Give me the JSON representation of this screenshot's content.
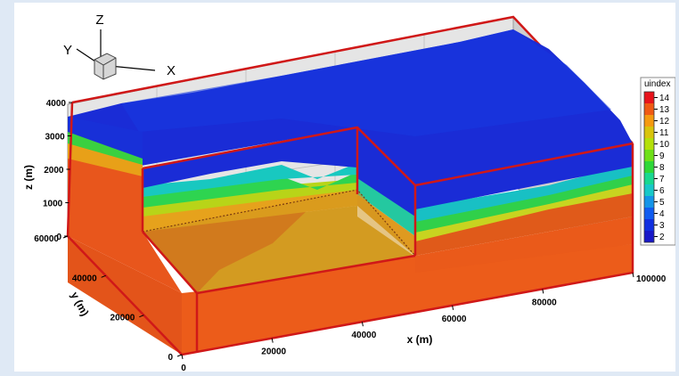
{
  "chart_data": {
    "type": "3d-block-contour",
    "variable": "uindex",
    "legend": {
      "title": "uindex",
      "levels": [
        14,
        13,
        12,
        11,
        10,
        9,
        8,
        7,
        6,
        5,
        4,
        3,
        2
      ],
      "colors": [
        "#e8141c",
        "#f05a14",
        "#f59a10",
        "#d8c40c",
        "#b4e00a",
        "#6ee018",
        "#2ed838",
        "#18d890",
        "#18c8c8",
        "#1494e8",
        "#105cf0",
        "#1030e0",
        "#1818c8"
      ],
      "placement": "right"
    },
    "axes": {
      "x": {
        "label": "x (m)",
        "ticks": [
          20000,
          40000,
          60000,
          80000,
          100000
        ],
        "range": [
          0,
          100000
        ],
        "zero_label": "0"
      },
      "y": {
        "label": "y (m)",
        "ticks": [
          20000,
          40000,
          60000
        ],
        "range": [
          0,
          60000
        ],
        "zero_label": "0"
      },
      "z": {
        "label": "z (m)",
        "ticks": [
          1000,
          2000,
          3000,
          4000
        ],
        "range": [
          0,
          4000
        ],
        "zero_label": "0"
      }
    },
    "triad": {
      "x": "X",
      "y": "Y",
      "z": "Z"
    },
    "cutaway": {
      "x": [
        0,
        40000
      ],
      "y": [
        0,
        40000
      ],
      "z": [
        0,
        3000
      ]
    },
    "layers_top_to_bottom": [
      2,
      3,
      5,
      7,
      9,
      11,
      12,
      13,
      14
    ]
  }
}
